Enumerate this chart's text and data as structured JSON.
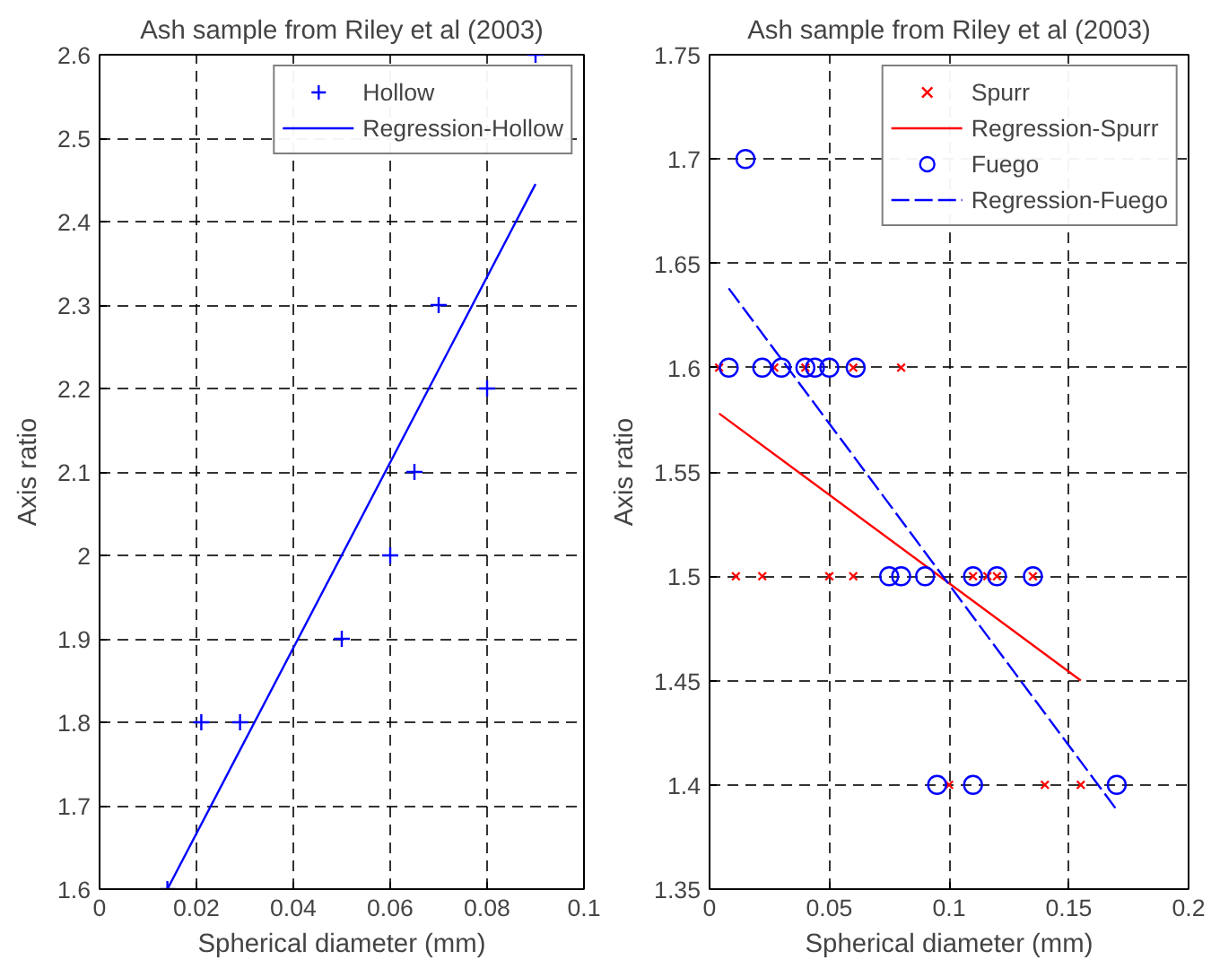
{
  "chart_data": [
    {
      "type": "scatter",
      "title": "Ash sample from Riley et al (2003)",
      "xlabel": "Spherical diameter (mm)",
      "ylabel": "Axis ratio",
      "xlim": [
        0,
        0.1
      ],
      "ylim": [
        1.6,
        2.6
      ],
      "xticks": [
        0,
        0.02,
        0.04,
        0.06,
        0.08,
        0.1
      ],
      "yticks": [
        1.6,
        1.7,
        1.8,
        1.9,
        2,
        2.1,
        2.2,
        2.3,
        2.4,
        2.5,
        2.6
      ],
      "grid": true,
      "legend": "top right",
      "series": [
        {
          "name": "Hollow",
          "type": "scatter",
          "marker": "cross",
          "color": "#0000ff",
          "x": [
            0.014,
            0.021,
            0.029,
            0.05,
            0.06,
            0.065,
            0.07,
            0.08,
            0.09
          ],
          "values": [
            1.6,
            1.8,
            1.8,
            1.9,
            2.0,
            2.1,
            2.3,
            2.2,
            2.6
          ]
        },
        {
          "name": "Regression-Hollow",
          "type": "line",
          "line_style": "solid",
          "color": "#0000ff",
          "x": [
            0.014,
            0.09
          ],
          "values": [
            1.6,
            2.445
          ]
        }
      ]
    },
    {
      "type": "scatter",
      "title": "Ash sample from Riley et al (2003)",
      "xlabel": "Spherical diameter (mm)",
      "ylabel": "Axis ratio",
      "xlim": [
        0,
        0.2
      ],
      "ylim": [
        1.35,
        1.75
      ],
      "xticks": [
        0,
        0.05,
        0.1,
        0.15,
        0.2
      ],
      "yticks": [
        1.35,
        1.4,
        1.45,
        1.5,
        1.55,
        1.6,
        1.65,
        1.7,
        1.75
      ],
      "grid": true,
      "legend": "top right",
      "series": [
        {
          "name": "Spurr",
          "type": "scatter",
          "marker": "x",
          "color": "#ff0000",
          "x": [
            0.004,
            0.027,
            0.04,
            0.06,
            0.08,
            0.011,
            0.022,
            0.05,
            0.06,
            0.11,
            0.116,
            0.12,
            0.135,
            0.1,
            0.14,
            0.155
          ],
          "values": [
            1.6,
            1.6,
            1.6,
            1.6,
            1.6,
            1.5,
            1.5,
            1.5,
            1.5,
            1.5,
            1.5,
            1.5,
            1.5,
            1.4,
            1.4,
            1.4
          ]
        },
        {
          "name": "Regression-Spurr",
          "type": "line",
          "line_style": "solid",
          "color": "#ff0000",
          "x": [
            0.004,
            0.155
          ],
          "values": [
            1.578,
            1.45
          ]
        },
        {
          "name": "Fuego",
          "type": "scatter",
          "marker": "circle",
          "color": "#0000ff",
          "x": [
            0.015,
            0.008,
            0.022,
            0.03,
            0.04,
            0.044,
            0.05,
            0.061,
            0.075,
            0.08,
            0.09,
            0.11,
            0.12,
            0.135,
            0.095,
            0.11,
            0.17
          ],
          "values": [
            1.7,
            1.6,
            1.6,
            1.6,
            1.6,
            1.6,
            1.6,
            1.6,
            1.5,
            1.5,
            1.5,
            1.5,
            1.5,
            1.5,
            1.4,
            1.4,
            1.4
          ]
        },
        {
          "name": "Regression-Fuego",
          "type": "line",
          "line_style": "dashed",
          "color": "#0000ff",
          "x": [
            0.008,
            0.17
          ],
          "values": [
            1.638,
            1.388
          ]
        }
      ]
    }
  ]
}
